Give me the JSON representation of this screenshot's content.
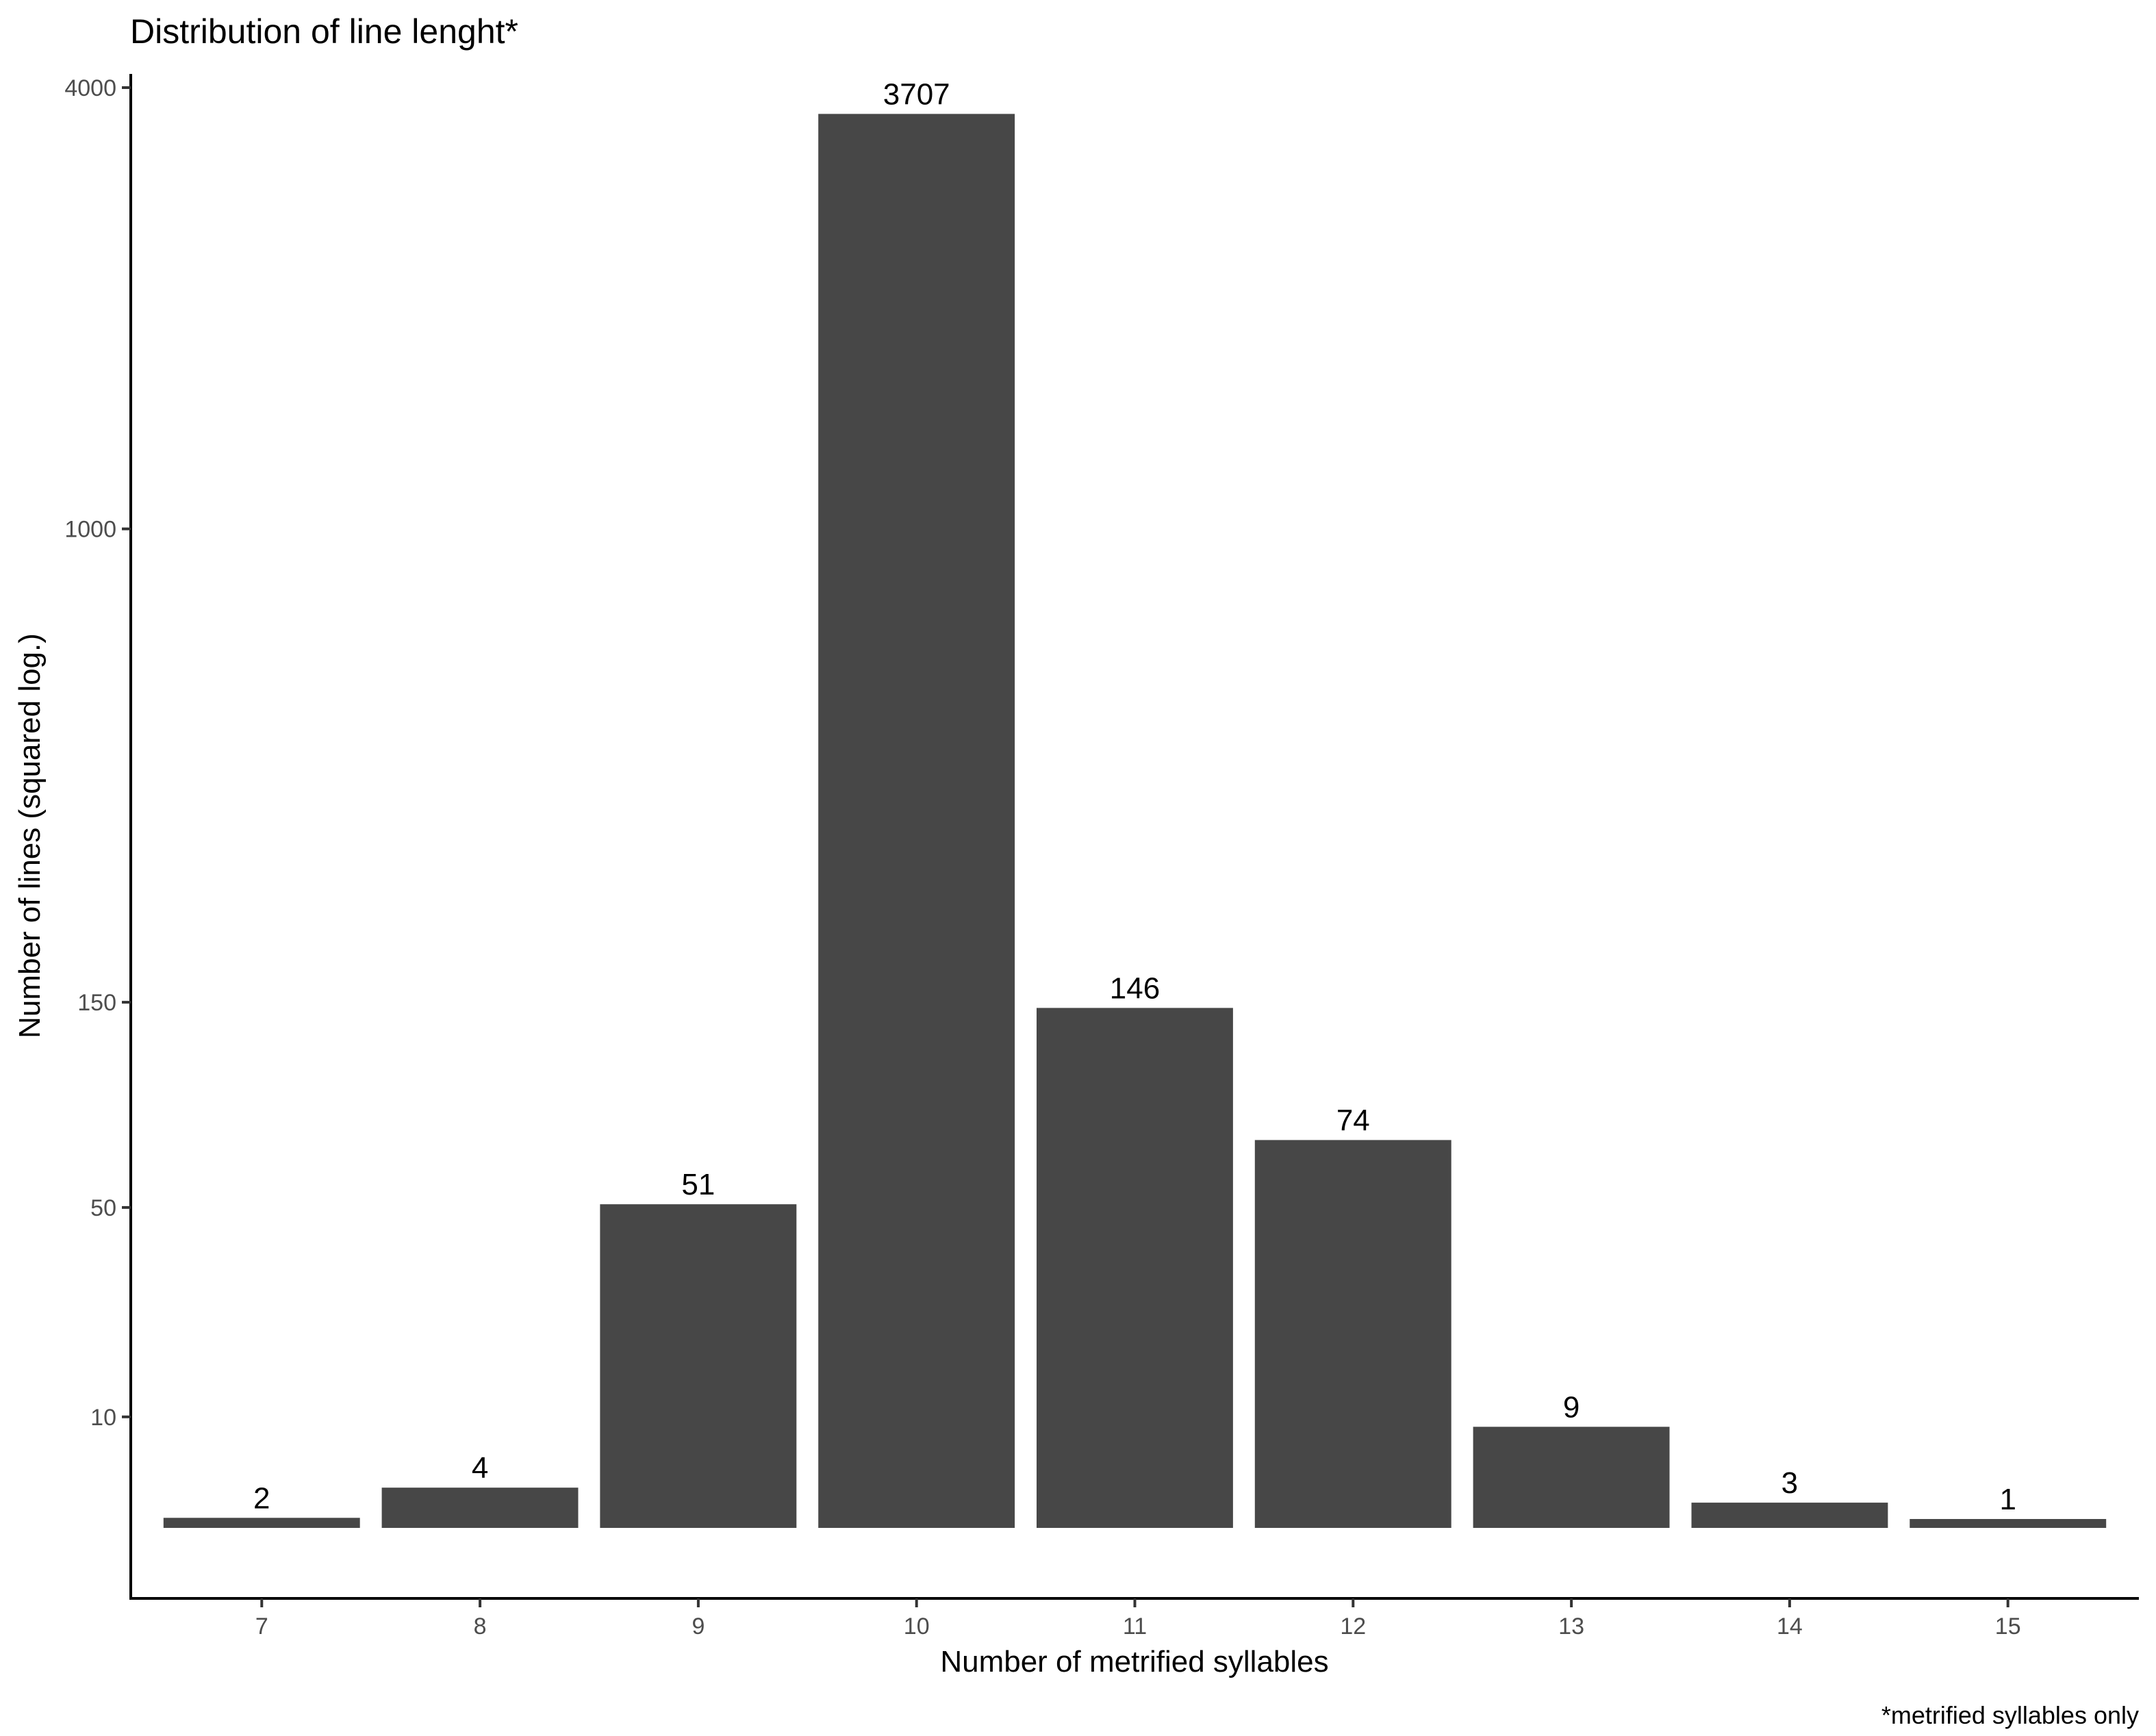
{
  "chart_data": {
    "type": "bar",
    "title": "Distribution of line lenght*",
    "xlabel": "Number of metrified syllables",
    "ylabel": "Number of lines (squared log.)",
    "caption": "*metrified syllables only",
    "categories": [
      "7",
      "8",
      "9",
      "10",
      "11",
      "12",
      "13",
      "14",
      "15"
    ],
    "values": [
      2,
      4,
      51,
      3707,
      146,
      74,
      9,
      3,
      1
    ],
    "y_scale": "squared log",
    "y_ticks": [
      10,
      50,
      150,
      1000,
      4000
    ],
    "ylim": [
      1,
      4000
    ],
    "grid": false,
    "bar_color": "#474747"
  }
}
